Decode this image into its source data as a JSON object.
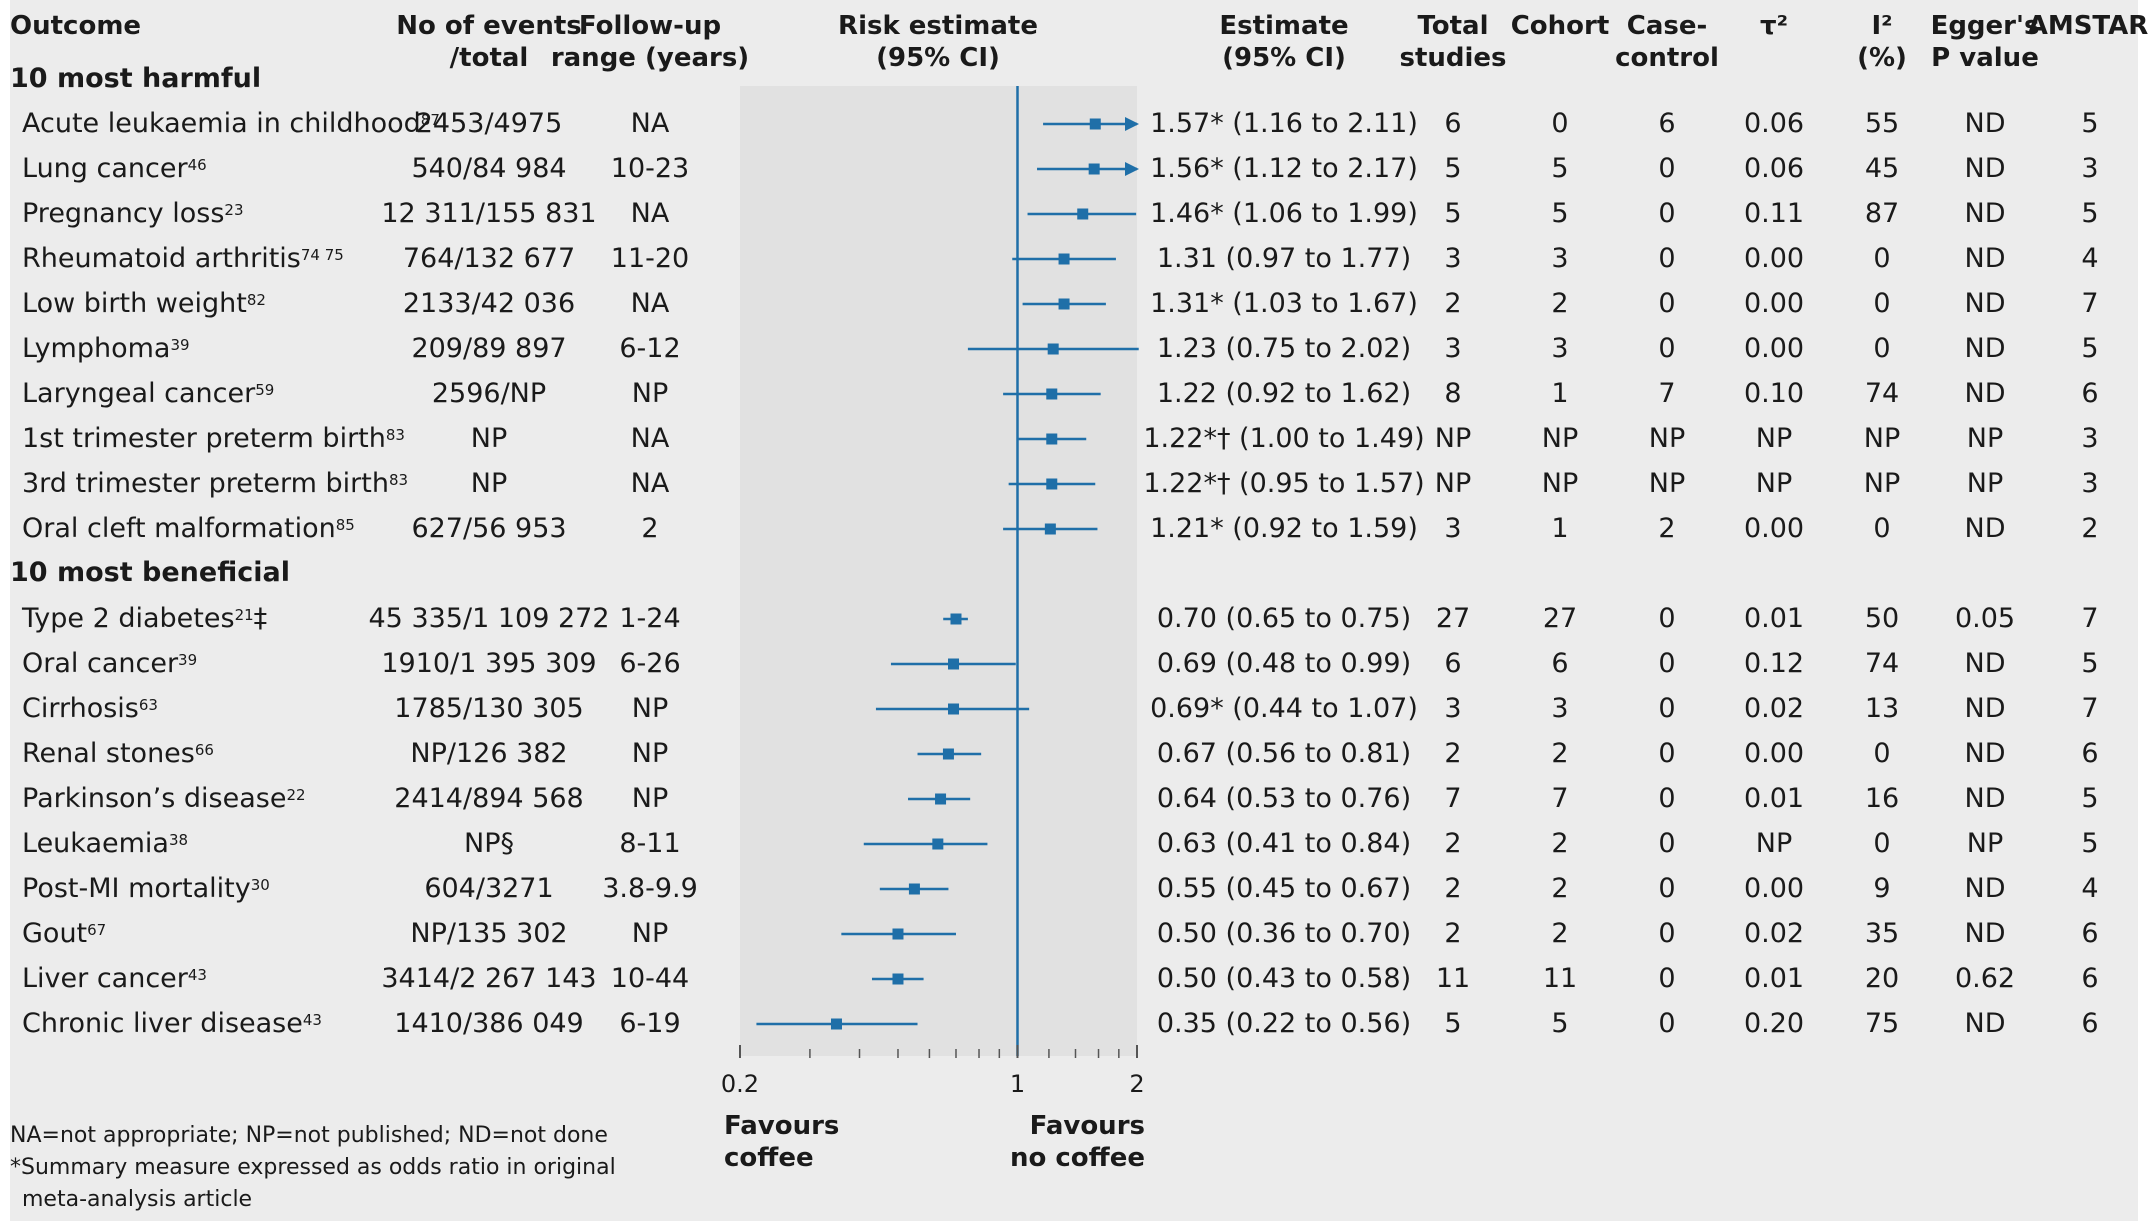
{
  "headers": {
    "outcome": "Outcome",
    "events": [
      "No of events",
      "/total"
    ],
    "followup": [
      "Follow-up",
      "range (years)"
    ],
    "risk": [
      "Risk estimate",
      "(95% CI)"
    ],
    "estimate": [
      "Estimate",
      "(95% CI)"
    ],
    "total": [
      "Total",
      "studies"
    ],
    "cohort": "Cohort",
    "casecontrol": [
      "Case-",
      "control"
    ],
    "tau": "τ²",
    "i2": [
      "I²",
      "(%)"
    ],
    "egger": [
      "Egger's",
      "P value"
    ],
    "amstar": "AMSTAR"
  },
  "sections": {
    "harmful": "10 most harmful",
    "beneficial": "10 most beneficial"
  },
  "rows": [
    {
      "outcome": "Acute leukaemia in childhood",
      "ref": "87",
      "events": "2453/4975",
      "followup": "NA",
      "est": 1.57,
      "lo": 1.16,
      "hi": 2.11,
      "arrow": true,
      "estimate": "1.57* (1.16 to 2.11)",
      "total": "6",
      "cohort": "0",
      "cc": "6",
      "tau": "0.06",
      "i2": "55",
      "egger": "ND",
      "amstar": "5"
    },
    {
      "outcome": "Lung cancer",
      "ref": "46",
      "events": "540/84 984",
      "followup": "10-23",
      "est": 1.56,
      "lo": 1.12,
      "hi": 2.17,
      "arrow": true,
      "estimate": "1.56* (1.12 to 2.17)",
      "total": "5",
      "cohort": "5",
      "cc": "0",
      "tau": "0.06",
      "i2": "45",
      "egger": "ND",
      "amstar": "3"
    },
    {
      "outcome": "Pregnancy loss",
      "ref": "23",
      "events": "12 311/155 831",
      "followup": "NA",
      "est": 1.46,
      "lo": 1.06,
      "hi": 1.99,
      "arrow": false,
      "estimate": "1.46* (1.06 to 1.99)",
      "total": "5",
      "cohort": "5",
      "cc": "0",
      "tau": "0.11",
      "i2": "87",
      "egger": "ND",
      "amstar": "5"
    },
    {
      "outcome": "Rheumatoid arthritis",
      "ref": "74 75",
      "events": "764/132 677",
      "followup": "11-20",
      "est": 1.31,
      "lo": 0.97,
      "hi": 1.77,
      "arrow": false,
      "estimate": "1.31 (0.97 to 1.77)",
      "total": "3",
      "cohort": "3",
      "cc": "0",
      "tau": "0.00",
      "i2": "0",
      "egger": "ND",
      "amstar": "4"
    },
    {
      "outcome": "Low birth weight",
      "ref": "82",
      "events": "2133/42 036",
      "followup": "NA",
      "est": 1.31,
      "lo": 1.03,
      "hi": 1.67,
      "arrow": false,
      "estimate": "1.31* (1.03 to 1.67)",
      "total": "2",
      "cohort": "2",
      "cc": "0",
      "tau": "0.00",
      "i2": "0",
      "egger": "ND",
      "amstar": "7"
    },
    {
      "outcome": "Lymphoma",
      "ref": "39",
      "events": "209/89 897",
      "followup": "6-12",
      "est": 1.23,
      "lo": 0.75,
      "hi": 2.02,
      "arrow": false,
      "estimate": "1.23 (0.75 to 2.02)",
      "total": "3",
      "cohort": "3",
      "cc": "0",
      "tau": "0.00",
      "i2": "0",
      "egger": "ND",
      "amstar": "5"
    },
    {
      "outcome": "Laryngeal cancer",
      "ref": "59",
      "events": "2596/NP",
      "followup": "NP",
      "est": 1.22,
      "lo": 0.92,
      "hi": 1.62,
      "arrow": false,
      "estimate": "1.22 (0.92 to 1.62)",
      "total": "8",
      "cohort": "1",
      "cc": "7",
      "tau": "0.10",
      "i2": "74",
      "egger": "ND",
      "amstar": "6"
    },
    {
      "outcome": "1st trimester preterm birth",
      "ref": "83",
      "events": "NP",
      "followup": "NA",
      "est": 1.22,
      "lo": 1.0,
      "hi": 1.49,
      "arrow": false,
      "estimate": "1.22*† (1.00 to 1.49)",
      "total": "NP",
      "cohort": "NP",
      "cc": "NP",
      "tau": "NP",
      "i2": "NP",
      "egger": "NP",
      "amstar": "3"
    },
    {
      "outcome": "3rd trimester preterm birth",
      "ref": "83",
      "events": "NP",
      "followup": "NA",
      "est": 1.22,
      "lo": 0.95,
      "hi": 1.57,
      "arrow": false,
      "estimate": "1.22*† (0.95 to 1.57)",
      "total": "NP",
      "cohort": "NP",
      "cc": "NP",
      "tau": "NP",
      "i2": "NP",
      "egger": "NP",
      "amstar": "3"
    },
    {
      "outcome": "Oral cleft malformation",
      "ref": "85",
      "events": "627/56 953",
      "followup": "2",
      "est": 1.21,
      "lo": 0.92,
      "hi": 1.59,
      "arrow": false,
      "estimate": "1.21* (0.92 to 1.59)",
      "total": "3",
      "cohort": "1",
      "cc": "2",
      "tau": "0.00",
      "i2": "0",
      "egger": "ND",
      "amstar": "2"
    },
    {
      "outcome": "Type 2 diabetes",
      "ref": "21",
      "suffix": "‡",
      "events": "45 335/1 109 272",
      "followup": "1-24",
      "est": 0.7,
      "lo": 0.65,
      "hi": 0.75,
      "arrow": false,
      "estimate": "0.70 (0.65 to 0.75)",
      "total": "27",
      "cohort": "27",
      "cc": "0",
      "tau": "0.01",
      "i2": "50",
      "egger": "0.05",
      "amstar": "7"
    },
    {
      "outcome": "Oral cancer",
      "ref": "39",
      "events": "1910/1 395 309",
      "followup": "6-26",
      "est": 0.69,
      "lo": 0.48,
      "hi": 0.99,
      "arrow": false,
      "estimate": "0.69 (0.48 to 0.99)",
      "total": "6",
      "cohort": "6",
      "cc": "0",
      "tau": "0.12",
      "i2": "74",
      "egger": "ND",
      "amstar": "5"
    },
    {
      "outcome": "Cirrhosis",
      "ref": "63",
      "events": "1785/130 305",
      "followup": "NP",
      "est": 0.69,
      "lo": 0.44,
      "hi": 1.07,
      "arrow": false,
      "estimate": "0.69* (0.44 to 1.07)",
      "total": "3",
      "cohort": "3",
      "cc": "0",
      "tau": "0.02",
      "i2": "13",
      "egger": "ND",
      "amstar": "7"
    },
    {
      "outcome": "Renal stones",
      "ref": "66",
      "events": "NP/126 382",
      "followup": "NP",
      "est": 0.67,
      "lo": 0.56,
      "hi": 0.81,
      "arrow": false,
      "estimate": "0.67 (0.56 to 0.81)",
      "total": "2",
      "cohort": "2",
      "cc": "0",
      "tau": "0.00",
      "i2": "0",
      "egger": "ND",
      "amstar": "6"
    },
    {
      "outcome": "Parkinson’s disease",
      "ref": "22",
      "events": "2414/894 568",
      "followup": "NP",
      "est": 0.64,
      "lo": 0.53,
      "hi": 0.76,
      "arrow": false,
      "estimate": "0.64 (0.53 to 0.76)",
      "total": "7",
      "cohort": "7",
      "cc": "0",
      "tau": "0.01",
      "i2": "16",
      "egger": "ND",
      "amstar": "5"
    },
    {
      "outcome": "Leukaemia",
      "ref": "38",
      "events": "NP§",
      "followup": "8-11",
      "est": 0.63,
      "lo": 0.41,
      "hi": 0.84,
      "arrow": false,
      "estimate": "0.63 (0.41 to 0.84)",
      "total": "2",
      "cohort": "2",
      "cc": "0",
      "tau": "NP",
      "i2": "0",
      "egger": "NP",
      "amstar": "5"
    },
    {
      "outcome": "Post-MI mortality",
      "ref": "30",
      "events": "604/3271",
      "followup": "3.8-9.9",
      "est": 0.55,
      "lo": 0.45,
      "hi": 0.67,
      "arrow": false,
      "estimate": "0.55 (0.45 to 0.67)",
      "total": "2",
      "cohort": "2",
      "cc": "0",
      "tau": "0.00",
      "i2": "9",
      "egger": "ND",
      "amstar": "4"
    },
    {
      "outcome": "Gout",
      "ref": "67",
      "events": "NP/135 302",
      "followup": "NP",
      "est": 0.5,
      "lo": 0.36,
      "hi": 0.7,
      "arrow": false,
      "estimate": "0.50 (0.36 to 0.70)",
      "total": "2",
      "cohort": "2",
      "cc": "0",
      "tau": "0.02",
      "i2": "35",
      "egger": "ND",
      "amstar": "6"
    },
    {
      "outcome": "Liver cancer",
      "ref": "43",
      "events": "3414/2 267 143",
      "followup": "10-44",
      "est": 0.5,
      "lo": 0.43,
      "hi": 0.58,
      "arrow": false,
      "estimate": "0.50 (0.43 to 0.58)",
      "total": "11",
      "cohort": "11",
      "cc": "0",
      "tau": "0.01",
      "i2": "20",
      "egger": "0.62",
      "amstar": "6"
    },
    {
      "outcome": "Chronic liver disease",
      "ref": "43",
      "events": "1410/386 049",
      "followup": "6-19",
      "est": 0.35,
      "lo": 0.22,
      "hi": 0.56,
      "arrow": false,
      "estimate": "0.35 (0.22 to 0.56)",
      "total": "5",
      "cohort": "5",
      "cc": "0",
      "tau": "0.20",
      "i2": "75",
      "egger": "ND",
      "amstar": "6"
    }
  ],
  "chart_data": {
    "type": "forest",
    "x_scale": "log",
    "xlim": [
      0.2,
      2
    ],
    "x_ticks": [
      0.2,
      1,
      2
    ],
    "x_tick_labels": [
      "0.2",
      "1",
      "2"
    ],
    "minor_ticks": [
      0.3,
      0.4,
      0.5,
      0.6,
      0.7,
      0.8,
      0.9,
      1.2,
      1.4,
      1.6,
      1.8
    ],
    "reference_line": 1,
    "marker_color": "#1f6fa8"
  },
  "favours": {
    "left": [
      "Favours",
      "coffee"
    ],
    "right": [
      "Favours",
      "no coffee"
    ]
  },
  "footnotes": [
    "NA=not appropriate; NP=not published; ND=not done",
    "*Summary measure expressed as odds ratio in original",
    "meta-analysis article"
  ]
}
